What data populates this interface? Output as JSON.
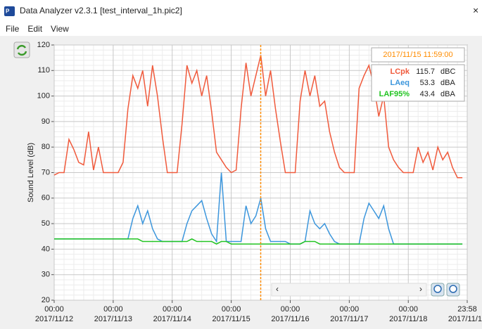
{
  "window": {
    "title": "Data Analyzer v2.3.1 [test_interval_1h.pic2]"
  },
  "menu": [
    "File",
    "Edit",
    "View"
  ],
  "chart_data": {
    "type": "line",
    "ylabel": "Sound Level (dB)",
    "x": [
      "00:00 2017/11/12",
      "02:00 2017/11/12",
      "04:00 2017/11/12",
      "06:00 2017/11/12",
      "08:00 2017/11/12",
      "10:00 2017/11/12",
      "12:00 2017/11/12",
      "14:00 2017/11/12",
      "16:00 2017/11/12",
      "18:00 2017/11/12",
      "20:00 2017/11/12",
      "22:00 2017/11/12",
      "00:00 2017/11/13",
      "02:00 2017/11/13",
      "04:00 2017/11/13",
      "06:00 2017/11/13",
      "08:00 2017/11/13",
      "10:00 2017/11/13",
      "12:00 2017/11/13",
      "14:00 2017/11/13",
      "16:00 2017/11/13",
      "18:00 2017/11/13",
      "20:00 2017/11/13",
      "22:00 2017/11/13",
      "00:00 2017/11/14",
      "02:00 2017/11/14",
      "04:00 2017/11/14",
      "06:00 2017/11/14",
      "08:00 2017/11/14",
      "10:00 2017/11/14",
      "12:00 2017/11/14",
      "14:00 2017/11/14",
      "16:00 2017/11/14",
      "18:00 2017/11/14",
      "20:00 2017/11/14",
      "22:00 2017/11/14",
      "00:00 2017/11/15",
      "02:00 2017/11/15",
      "04:00 2017/11/15",
      "06:00 2017/11/15",
      "08:00 2017/11/15",
      "10:00 2017/11/15",
      "12:00 2017/11/15",
      "14:00 2017/11/15",
      "16:00 2017/11/15",
      "18:00 2017/11/15",
      "20:00 2017/11/15",
      "22:00 2017/11/15",
      "00:00 2017/11/16",
      "02:00 2017/11/16",
      "04:00 2017/11/16",
      "06:00 2017/11/16",
      "08:00 2017/11/16",
      "10:00 2017/11/16",
      "12:00 2017/11/16",
      "14:00 2017/11/16",
      "16:00 2017/11/16",
      "18:00 2017/11/16",
      "20:00 2017/11/16",
      "22:00 2017/11/16",
      "00:00 2017/11/17",
      "02:00 2017/11/17",
      "04:00 2017/11/17",
      "06:00 2017/11/17",
      "08:00 2017/11/17",
      "10:00 2017/11/17",
      "12:00 2017/11/17",
      "14:00 2017/11/17",
      "16:00 2017/11/17",
      "18:00 2017/11/17",
      "20:00 2017/11/17",
      "22:00 2017/11/17",
      "00:00 2017/11/18",
      "02:00 2017/11/18",
      "04:00 2017/11/18",
      "06:00 2017/11/18",
      "08:00 2017/11/18",
      "10:00 2017/11/18",
      "12:00 2017/11/18",
      "14:00 2017/11/18",
      "16:00 2017/11/18",
      "18:00 2017/11/18",
      "20:00 2017/11/18",
      "22:00 2017/11/18"
    ],
    "series": [
      {
        "name": "LCpk",
        "color": "#f05a3c",
        "values": [
          69,
          70,
          70,
          83,
          79,
          74,
          73,
          86,
          71,
          80,
          70,
          70,
          70,
          70,
          74,
          95,
          108,
          103,
          110,
          96,
          112,
          100,
          84,
          70,
          70,
          70,
          89,
          112,
          105,
          110,
          100,
          108,
          94,
          78,
          75,
          72,
          70,
          71,
          95,
          113,
          100,
          108,
          116,
          100,
          110,
          95,
          82,
          70,
          70,
          70,
          98,
          110,
          100,
          108,
          96,
          98,
          86,
          78,
          72,
          70,
          70,
          70,
          103,
          108,
          112,
          104,
          92,
          100,
          80,
          75,
          72,
          70,
          70,
          70,
          80,
          74,
          78,
          71,
          80,
          75,
          78,
          72,
          68,
          68
        ]
      },
      {
        "name": "LAeq",
        "color": "#3c96dc",
        "values": [
          44,
          44,
          44,
          44,
          44,
          44,
          44,
          44,
          44,
          44,
          44,
          44,
          44,
          44,
          44,
          44,
          52,
          57,
          50,
          55,
          48,
          44,
          43,
          43,
          43,
          43,
          43,
          50,
          55,
          57,
          59,
          52,
          46,
          43,
          70,
          43,
          43,
          43,
          43,
          57,
          50,
          53,
          60,
          48,
          43,
          43,
          43,
          43,
          42,
          42,
          42,
          43,
          55,
          50,
          48,
          50,
          46,
          43,
          42,
          42,
          42,
          42,
          42,
          52,
          58,
          55,
          52,
          57,
          48,
          42,
          42,
          42,
          42,
          42,
          42,
          42,
          42,
          42,
          42,
          42,
          42,
          42,
          42,
          42
        ]
      },
      {
        "name": "LAF95%",
        "color": "#22c422",
        "values": [
          44,
          44,
          44,
          44,
          44,
          44,
          44,
          44,
          44,
          44,
          44,
          44,
          44,
          44,
          44,
          44,
          44,
          44,
          43,
          43,
          43,
          43,
          43,
          43,
          43,
          43,
          43,
          43,
          44,
          43,
          43,
          43,
          43,
          42,
          43,
          43,
          42,
          42,
          42,
          42,
          42,
          42,
          42,
          42,
          42,
          42,
          42,
          42,
          42,
          42,
          42,
          43,
          43,
          43,
          42,
          42,
          42,
          42,
          42,
          42,
          42,
          42,
          42,
          42,
          42,
          42,
          42,
          42,
          42,
          42,
          42,
          42,
          42,
          42,
          42,
          42,
          42,
          42,
          42,
          42,
          42,
          42,
          42,
          42
        ]
      }
    ],
    "ylim": [
      20,
      120
    ],
    "yticks": [
      20,
      30,
      40,
      50,
      60,
      70,
      80,
      90,
      100,
      110,
      120
    ],
    "xlim": [
      "00:00 2017/11/12",
      "23:58 2017/11/18"
    ],
    "xticks": [
      "00:00 2017/11/12",
      "00:00 2017/11/13",
      "00:00 2017/11/14",
      "00:00 2017/11/15",
      "00:00 2017/11/16",
      "00:00 2017/11/17",
      "00:00 2017/11/18",
      "23:58 2017/11/18"
    ],
    "grid": true,
    "cursor": {
      "time": "2017/11/15 11:59:00",
      "color": "#ff8c00",
      "values": [
        115.7,
        53.3,
        43.4
      ],
      "units": [
        "dBC",
        "dBA",
        "dBA"
      ]
    }
  }
}
